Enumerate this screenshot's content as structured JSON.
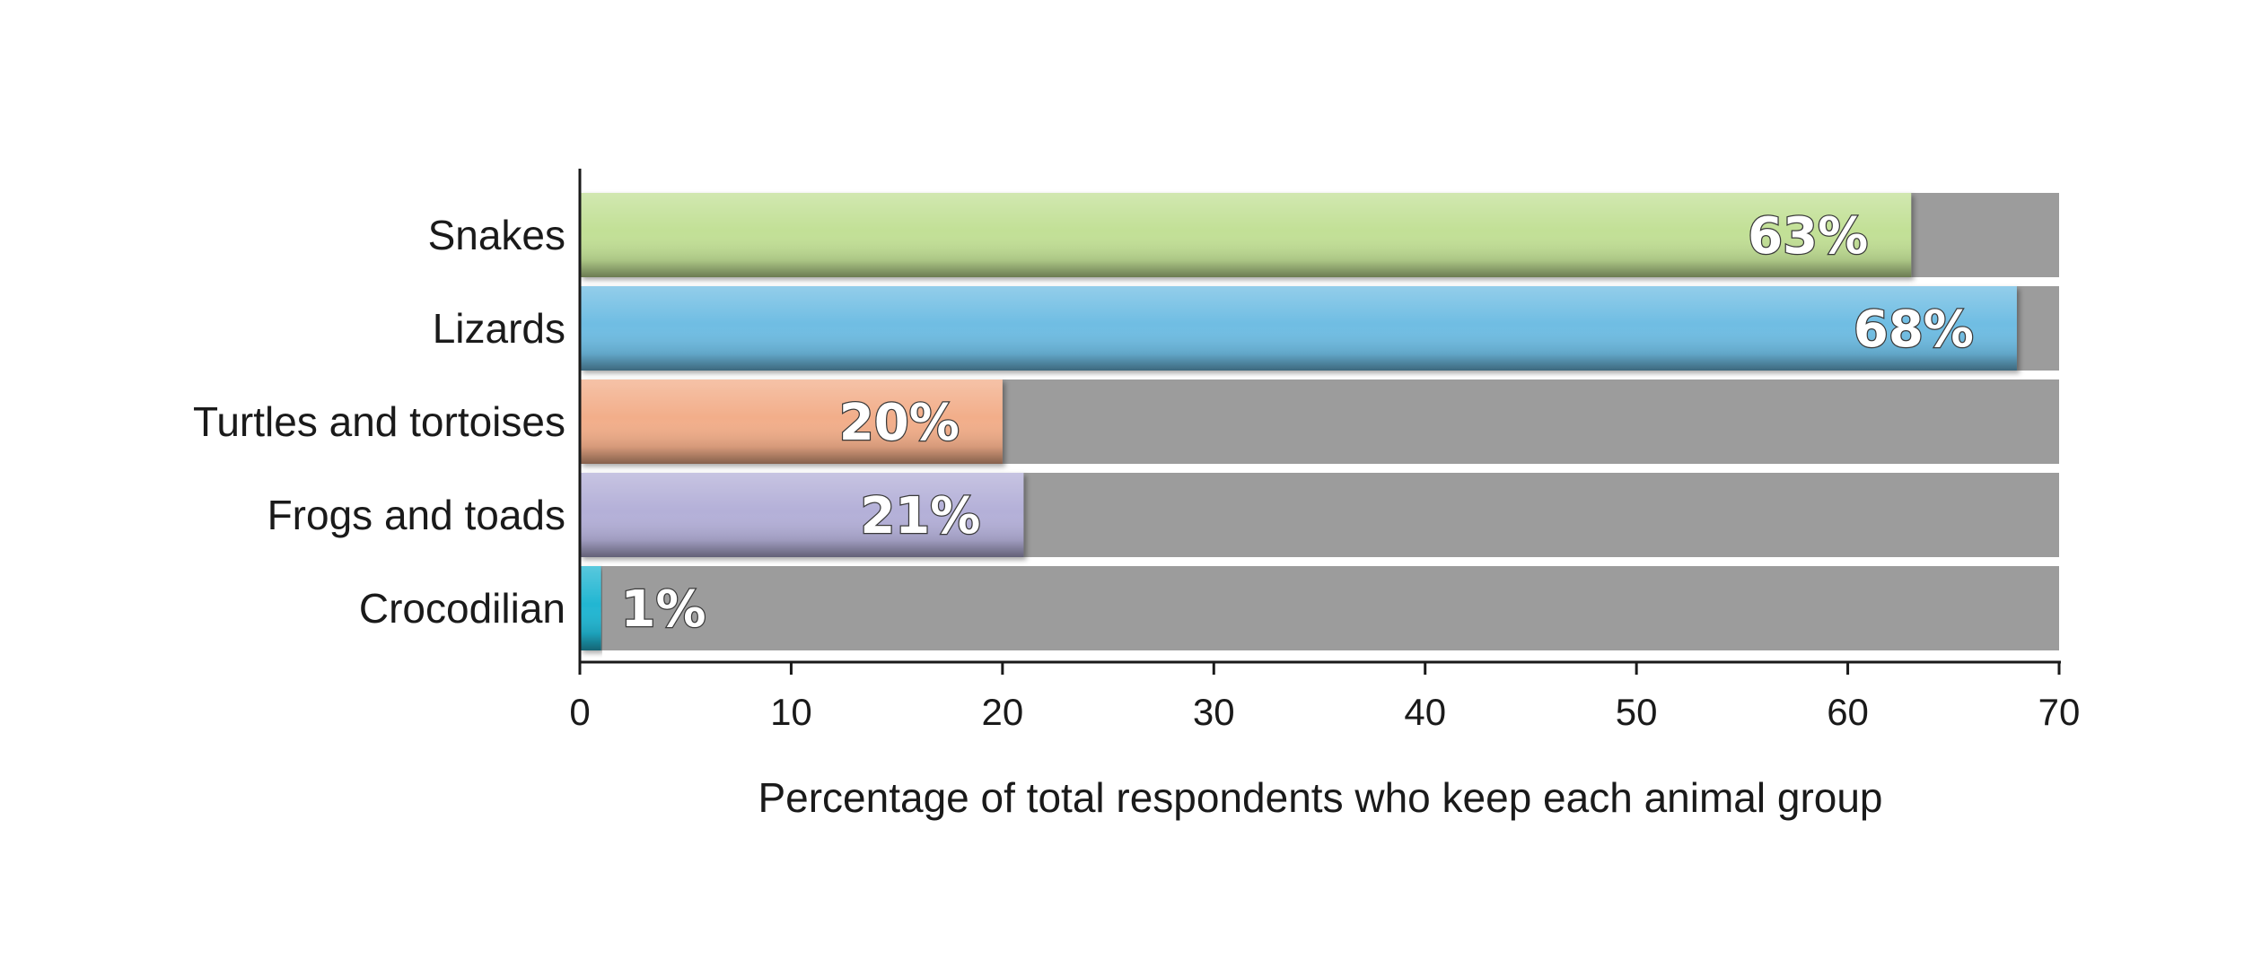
{
  "chart_data": {
    "type": "bar",
    "orientation": "horizontal",
    "categories": [
      "Snakes",
      "Lizards",
      "Turtles and tortoises",
      "Frogs and toads",
      "Crocodilian"
    ],
    "values": [
      63,
      68,
      20,
      21,
      1
    ],
    "data_labels": [
      "63%",
      "68%",
      "20%",
      "21%",
      "1%"
    ],
    "colors": [
      "#c2e096",
      "#6fbde3",
      "#f2ae8a",
      "#b4b0d8",
      "#22b6d2"
    ],
    "background_bar_color": "#9c9c9c",
    "xlabel": "Percentage of total respondents who keep each animal group",
    "ylabel": "",
    "xlim": [
      0,
      70
    ],
    "xticks": [
      0,
      10,
      20,
      30,
      40,
      50,
      60,
      70
    ],
    "grid": false,
    "legend": "none"
  }
}
